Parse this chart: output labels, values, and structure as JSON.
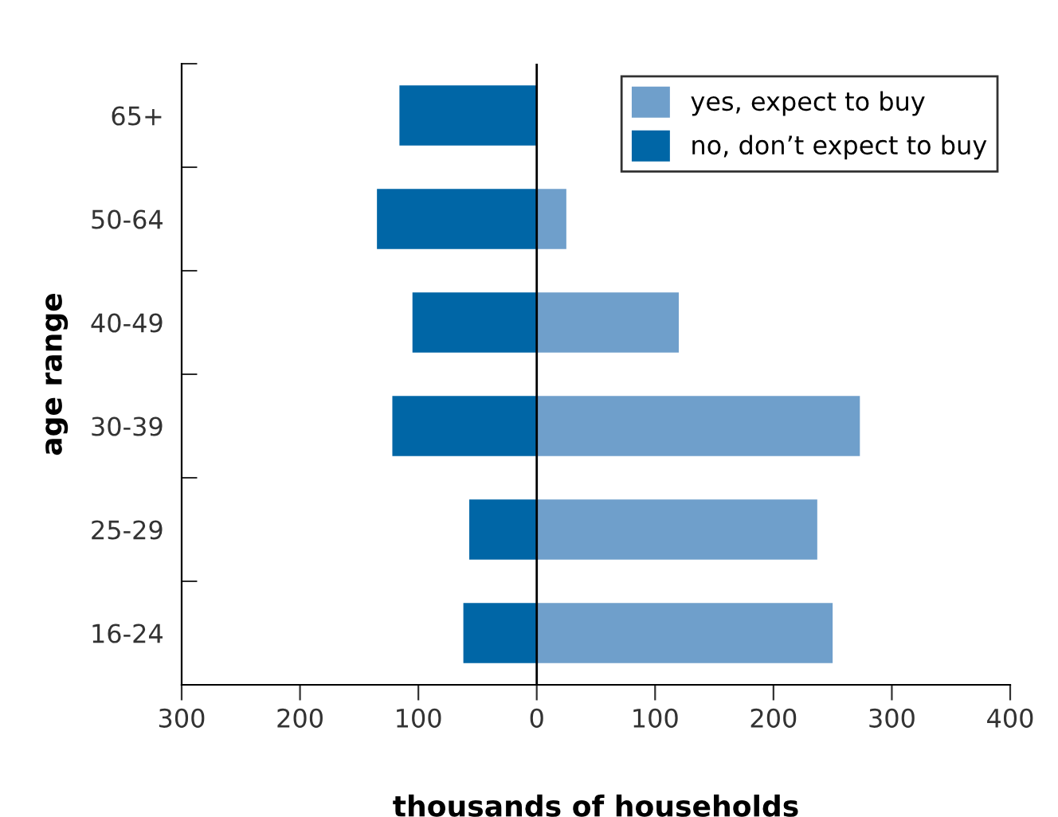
{
  "chart_data": {
    "type": "bar",
    "orientation": "horizontal",
    "xlabel": "thousands of households",
    "ylabel": "age range",
    "categories": [
      "65+",
      "50-64",
      "40-49",
      "30-39",
      "25-29",
      "16-24"
    ],
    "series": [
      {
        "name": "yes, expect to buy",
        "color": "#6f9fcb",
        "values": [
          0,
          25,
          120,
          273,
          237,
          250
        ]
      },
      {
        "name": "no, don’t expect to buy",
        "color": "#0066a6",
        "values": [
          -116,
          -135,
          -105,
          -122,
          -57,
          -62
        ]
      }
    ],
    "xlim": [
      -300,
      400
    ],
    "xticks": [
      {
        "value": -300,
        "label": "300"
      },
      {
        "value": -200,
        "label": "200"
      },
      {
        "value": -100,
        "label": "100"
      },
      0,
      100,
      200,
      300,
      400
    ],
    "ref_lines": [
      {
        "axis": "x",
        "value": 0,
        "color": "#000000"
      }
    ],
    "stacked": true,
    "grid": false,
    "legend": "top right"
  }
}
